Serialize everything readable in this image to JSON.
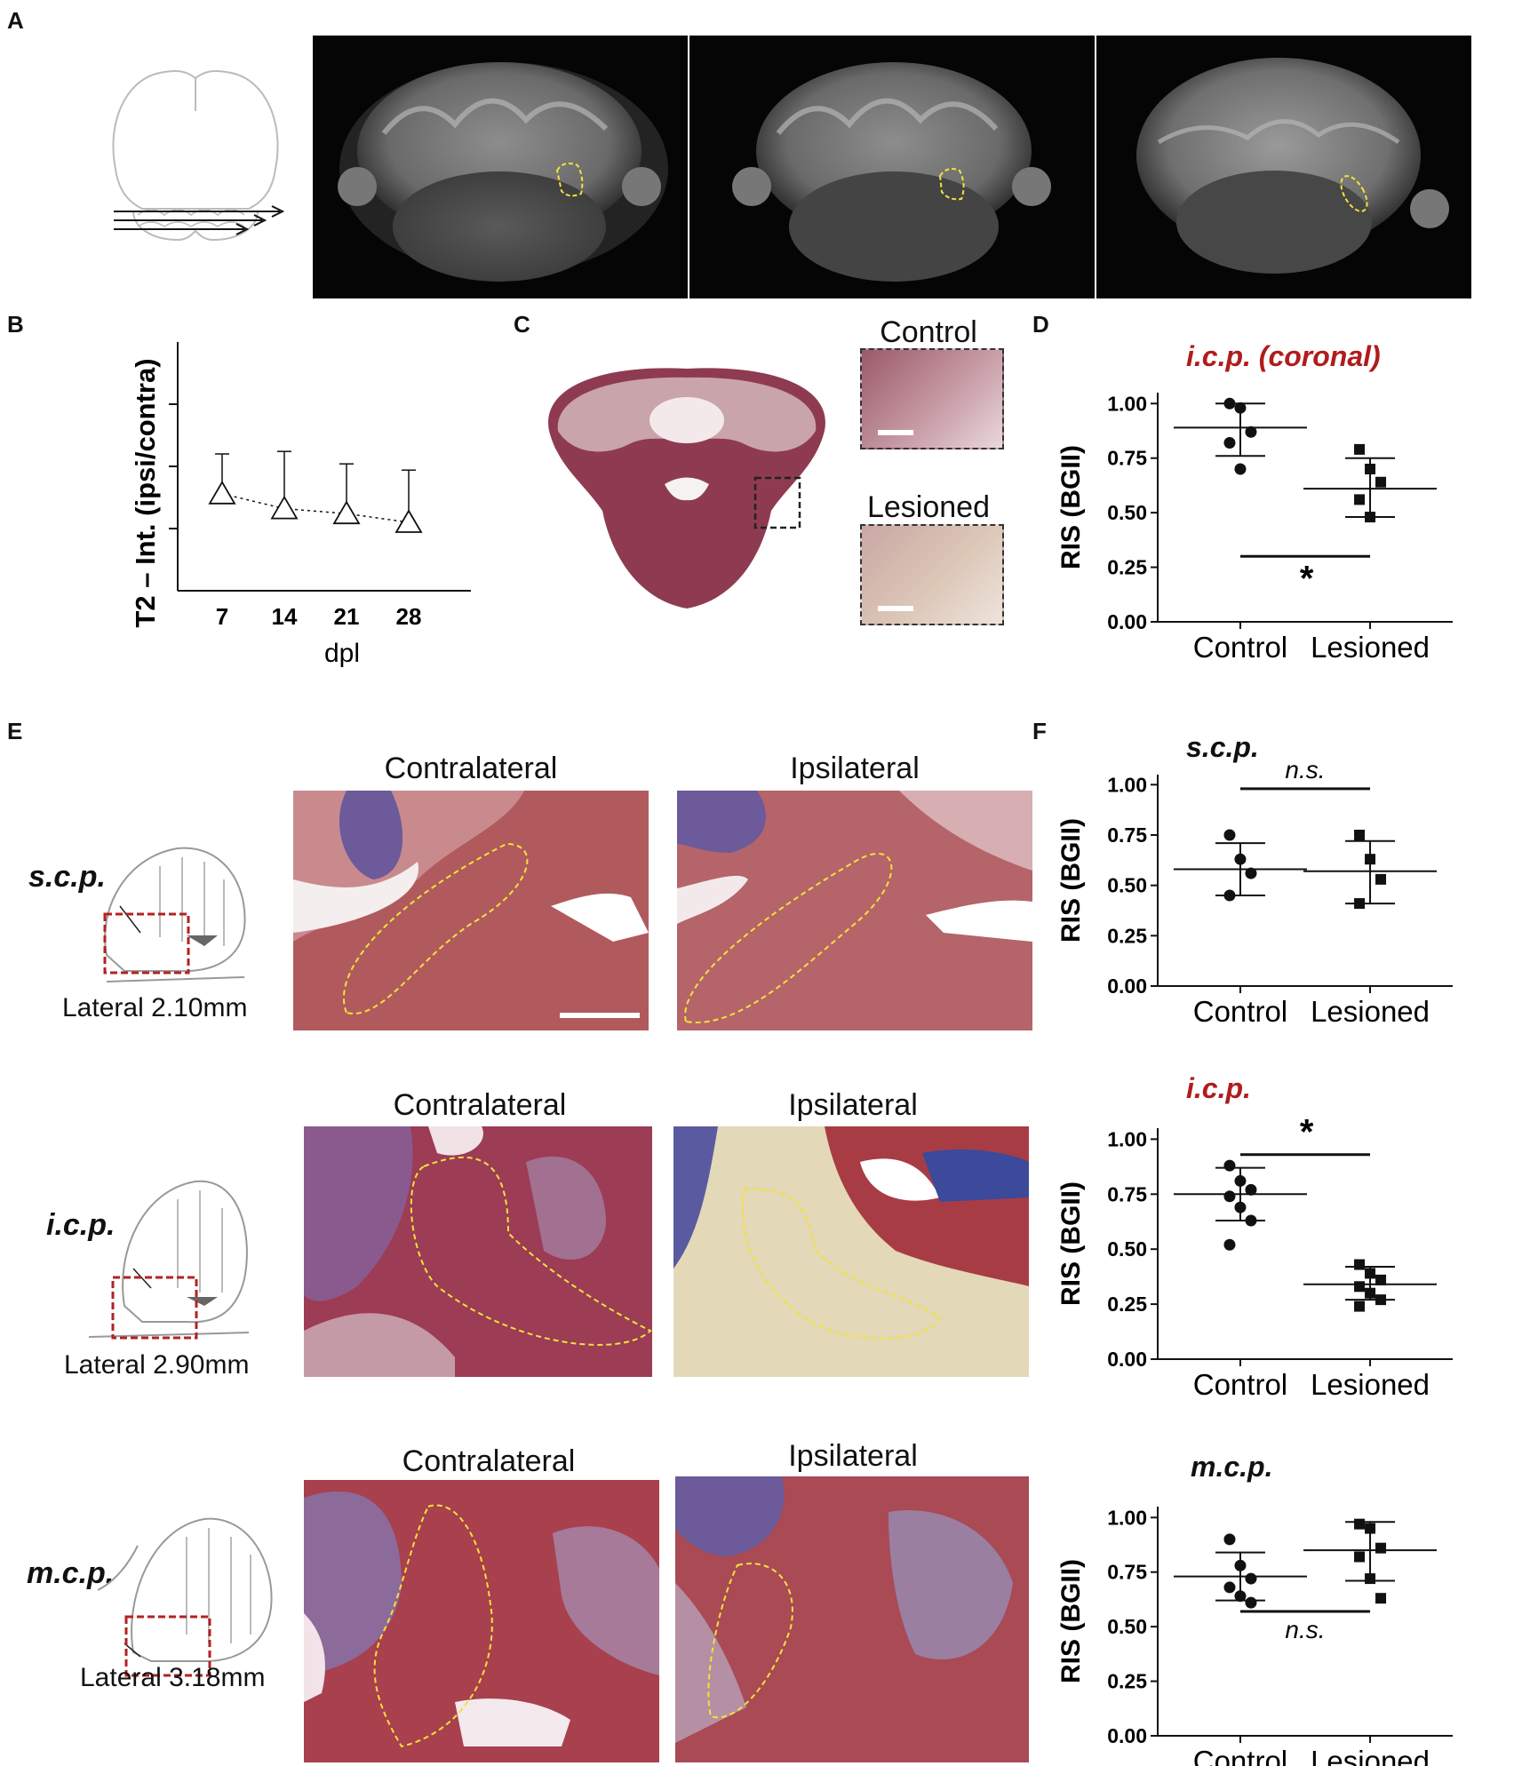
{
  "panels": {
    "A": "A",
    "B": "B",
    "C": "C",
    "D": "D",
    "E": "E",
    "F": "F"
  },
  "panel_c": {
    "control": "Control",
    "lesioned": "Lesioned"
  },
  "panel_e": {
    "rows": [
      {
        "tract": "s.c.p.",
        "lateral": "Lateral 2.10mm",
        "contra": "Contralateral",
        "ipsi": "Ipsilateral"
      },
      {
        "tract": "i.c.p.",
        "lateral": "Lateral 2.90mm",
        "contra": "Contralateral",
        "ipsi": "Ipsilateral"
      },
      {
        "tract": "m.c.p.",
        "lateral": "Lateral 3.18mm",
        "contra": "Contralateral",
        "ipsi": "Ipsilateral"
      }
    ]
  },
  "colors": {
    "roi_yellow": "#f2e23a",
    "box_red": "#b22222",
    "title_red": "#b01c1c"
  },
  "chart_data": [
    {
      "id": "B",
      "type": "line",
      "ylabel": "T2 – Int. (ipsi/contra)",
      "xlabel": "dpl",
      "x": [
        7,
        14,
        21,
        28
      ],
      "tick_labels": [
        "7",
        "14",
        "21",
        "28"
      ],
      "series": [
        {
          "values": [
            0.78,
            0.66,
            0.62,
            0.55
          ],
          "error": [
            0.32,
            0.46,
            0.4,
            0.42
          ]
        }
      ],
      "ylim": [
        0,
        2
      ],
      "marker": "open-triangle",
      "line_style": "dotted"
    },
    {
      "id": "D",
      "type": "scatter",
      "title": "i.c.p. (coronal)",
      "title_color": "#b01c1c",
      "ylabel": "RIS (BGII)",
      "categories": [
        "Control",
        "Lesioned"
      ],
      "yticks": [
        "0.00",
        "0.25",
        "0.50",
        "0.75",
        "1.00"
      ],
      "ylim": [
        0,
        1.05
      ],
      "series": [
        {
          "category": "Control",
          "marker": "circle",
          "values": [
            1.0,
            0.98,
            0.87,
            0.82,
            0.7
          ],
          "mean": 0.89,
          "sd": [
            0.76,
            1.0
          ]
        },
        {
          "category": "Lesioned",
          "marker": "square",
          "values": [
            0.79,
            0.7,
            0.64,
            0.56,
            0.48
          ],
          "mean": 0.61,
          "sd": [
            0.48,
            0.75
          ]
        }
      ],
      "significance": "*",
      "sig_y": 0.3,
      "sig_pos": "below"
    },
    {
      "id": "F1",
      "type": "scatter",
      "title": "s.c.p.",
      "ylabel": "RIS (BGII)",
      "categories": [
        "Control",
        "Lesioned"
      ],
      "yticks": [
        "0.00",
        "0.25",
        "0.50",
        "0.75",
        "1.00"
      ],
      "ylim": [
        0,
        1.05
      ],
      "series": [
        {
          "category": "Control",
          "marker": "circle",
          "values": [
            0.75,
            0.63,
            0.56,
            0.45
          ],
          "mean": 0.58,
          "sd": [
            0.45,
            0.71
          ]
        },
        {
          "category": "Lesioned",
          "marker": "square",
          "values": [
            0.75,
            0.63,
            0.53,
            0.41
          ],
          "mean": 0.57,
          "sd": [
            0.41,
            0.72
          ]
        }
      ],
      "significance": "n.s.",
      "sig_y": 0.98,
      "sig_pos": "above"
    },
    {
      "id": "F2",
      "type": "scatter",
      "title": "i.c.p.",
      "title_color": "#b01c1c",
      "ylabel": "RIS (BGII)",
      "categories": [
        "Control",
        "Lesioned"
      ],
      "yticks": [
        "0.00",
        "0.25",
        "0.50",
        "0.75",
        "1.00"
      ],
      "ylim": [
        0,
        1.05
      ],
      "series": [
        {
          "category": "Control",
          "marker": "circle",
          "values": [
            0.88,
            0.81,
            0.77,
            0.74,
            0.69,
            0.63,
            0.52
          ],
          "mean": 0.75,
          "sd": [
            0.63,
            0.87
          ]
        },
        {
          "category": "Lesioned",
          "marker": "square",
          "values": [
            0.43,
            0.39,
            0.36,
            0.33,
            0.3,
            0.27,
            0.24
          ],
          "mean": 0.34,
          "sd": [
            0.27,
            0.42
          ]
        }
      ],
      "significance": "*",
      "sig_y": 0.93,
      "sig_pos": "above"
    },
    {
      "id": "F3",
      "type": "scatter",
      "title": "m.c.p.",
      "ylabel": "RIS (BGII)",
      "categories": [
        "Control",
        "Lesioned"
      ],
      "yticks": [
        "0.00",
        "0.25",
        "0.50",
        "0.75",
        "1.00"
      ],
      "ylim": [
        0,
        1.05
      ],
      "series": [
        {
          "category": "Control",
          "marker": "circle",
          "values": [
            0.9,
            0.78,
            0.72,
            0.68,
            0.64,
            0.61
          ],
          "mean": 0.73,
          "sd": [
            0.62,
            0.84
          ]
        },
        {
          "category": "Lesioned",
          "marker": "square",
          "values": [
            0.97,
            0.95,
            0.86,
            0.82,
            0.72,
            0.63
          ],
          "mean": 0.85,
          "sd": [
            0.71,
            0.98
          ]
        }
      ],
      "significance": "n.s.",
      "sig_y": 0.57,
      "sig_pos": "below"
    }
  ]
}
